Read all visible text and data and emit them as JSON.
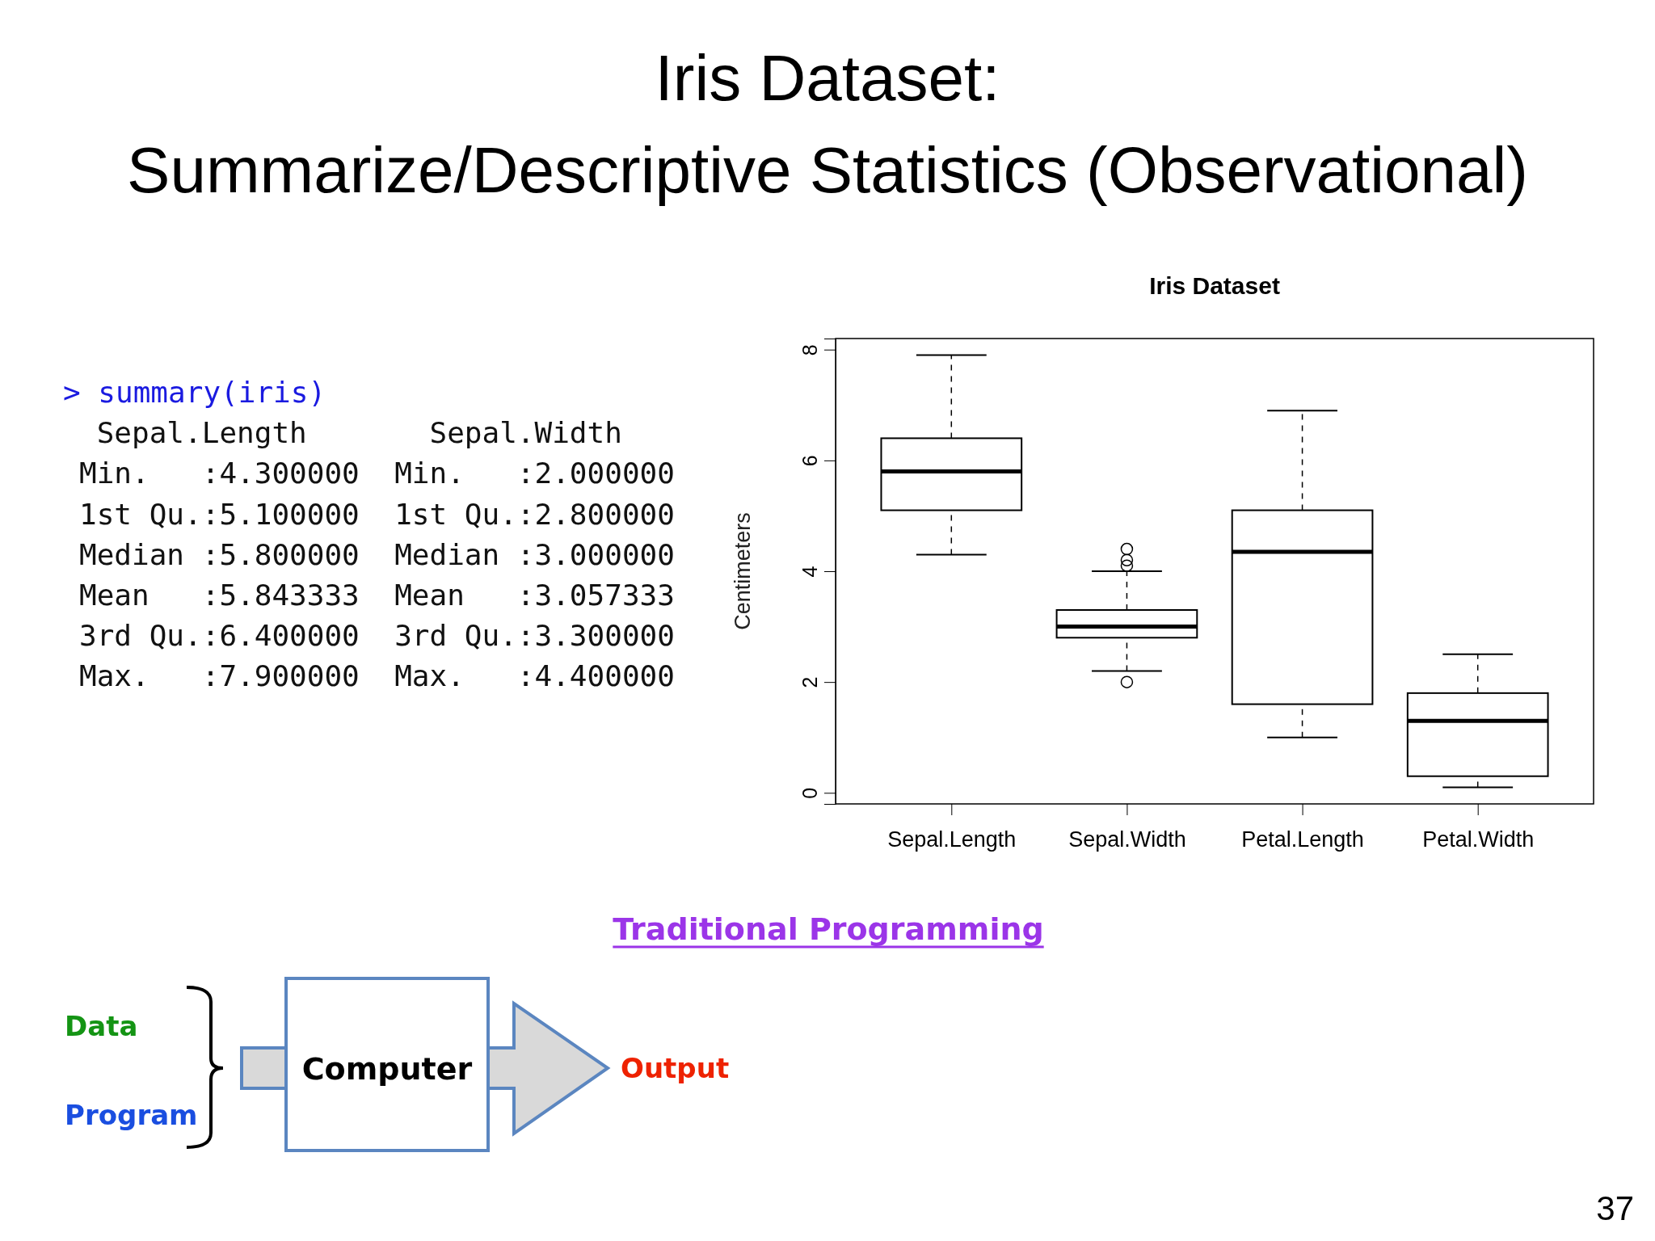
{
  "chart_data": [
    {
      "type": "other",
      "title": "Iris Dataset:",
      "subtitle": "Summarize/Descriptive Statistics (Observational)",
      "annotations": [
        "> summary(iris)",
        " Sepal.Length       Sepal.Width",
        "Min.   :4.300000  Min.   :2.000000",
        "1st Qu.:5.100000  1st Qu.:2.800000",
        "Median :5.800000  Median :3.000000",
        "Mean   :5.843333  Mean   :3.057333",
        "3rd Qu.:6.400000  3rd Qu.:3.300000",
        "Max.   :7.900000  Max.   :4.400000"
      ]
    },
    {
      "type": "box",
      "title": "Iris Dataset",
      "ylabel": "Centimeters",
      "categories": [
        "Sepal.Length",
        "Sepal.Width",
        "Petal.Length",
        "Petal.Width"
      ],
      "ylim": [
        -0.2,
        8.2
      ],
      "yticks": [
        0,
        2,
        4,
        6,
        8
      ],
      "color": "#000000",
      "boxes": [
        {
          "low": 4.3,
          "q1": 5.1,
          "median": 5.8,
          "q3": 6.4,
          "high": 7.9
        },
        {
          "low": 2.2,
          "q1": 2.8,
          "median": 3.0,
          "q3": 3.3,
          "high": 4.0,
          "outliers": [
            4.4,
            4.1,
            4.2,
            2.0
          ]
        },
        {
          "low": 1.0,
          "q1": 1.6,
          "median": 4.35,
          "q3": 5.1,
          "high": 6.9
        },
        {
          "low": 0.1,
          "q1": 0.3,
          "median": 1.3,
          "q3": 1.8,
          "high": 2.5
        }
      ]
    },
    {
      "type": "other",
      "title": "Traditional Programming",
      "annotations": [
        "Data",
        "Program",
        "Computer",
        "Output",
        "37"
      ]
    }
  ]
}
